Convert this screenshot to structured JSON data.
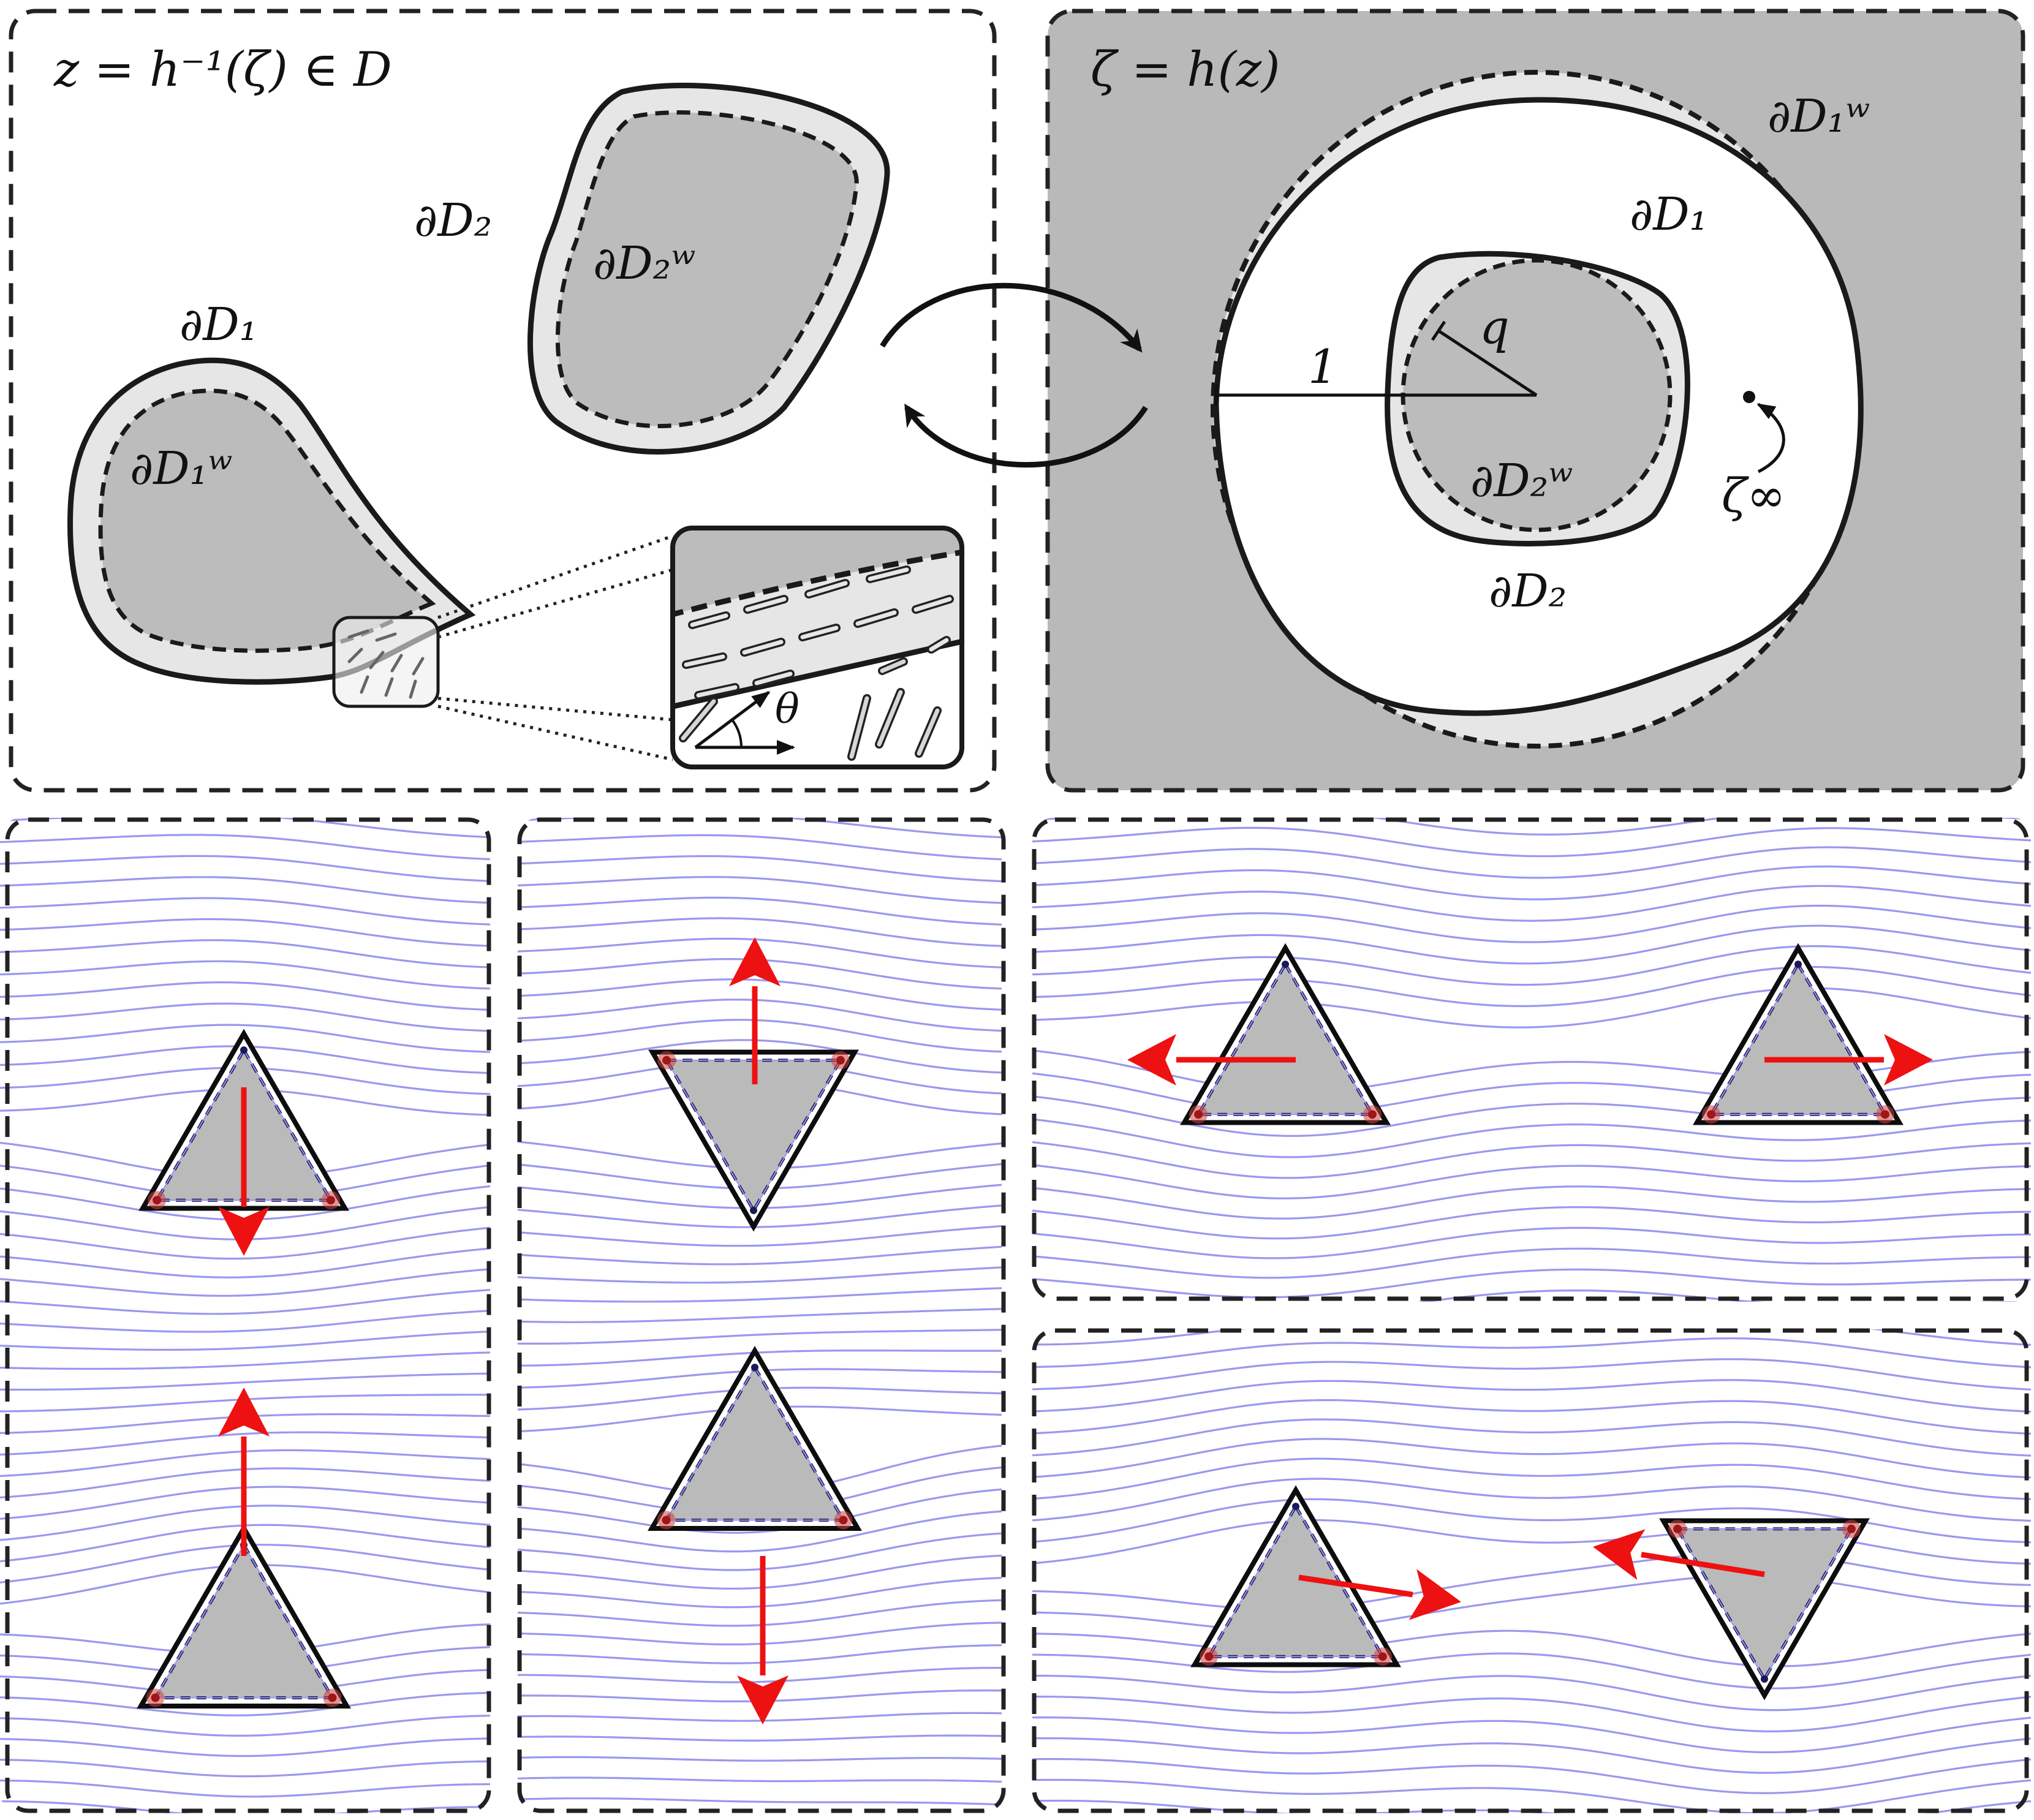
{
  "panels": {
    "physical": {
      "title": "z = h⁻¹(ζ) ∈ D",
      "boundary_1": "∂D₁",
      "boundary_2": "∂D₂",
      "wall_1": "∂D₁ʷ",
      "wall_2": "∂D₂ʷ",
      "angle": "θ"
    },
    "mapped": {
      "title": "ζ = h(z)",
      "boundary_1": "∂D₁",
      "boundary_2": "∂D₂",
      "wall_1": "∂D₁ʷ",
      "wall_2": "∂D₂ʷ",
      "radius_outer": "1",
      "radius_inner": "q",
      "point_infinity": "ζ∞"
    }
  },
  "icons": {
    "map_arrows": "circular-double-arrow-icon",
    "motion": "red-arrow-icon"
  },
  "colors": {
    "streamline": "#9a98ee",
    "arrow": "#ee1111",
    "body_fill": "#bababa",
    "wall_layer": "#e6e6e6",
    "vertex": "#d04040"
  },
  "flow_panels": [
    {
      "name": "single-triangle-moving-down",
      "arrow": "down"
    },
    {
      "name": "single-triangle-moving-up",
      "arrow": "up"
    },
    {
      "name": "inverted-triangle-moving-up",
      "arrow": "up"
    },
    {
      "name": "triangle-moving-down",
      "arrow": "down"
    },
    {
      "name": "pair-moving-apart",
      "arrow": "left-right"
    },
    {
      "name": "pair-mixed-orientation",
      "arrow": "diagonal"
    }
  ]
}
